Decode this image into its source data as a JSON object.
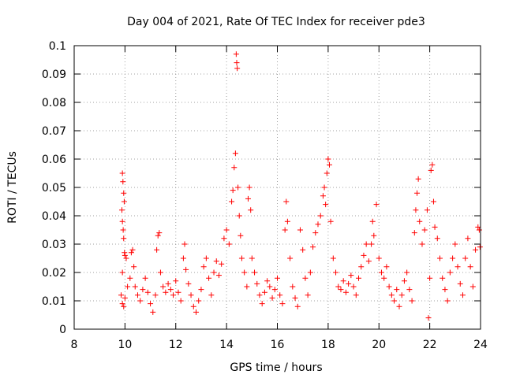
{
  "chart_data": {
    "type": "scatter",
    "title": "Day 004 of 2021, Rate Of TEC Index for receiver pde3",
    "xlabel": "GPS time / hours",
    "ylabel": "ROTI / TECUs",
    "xlim": [
      8,
      24
    ],
    "ylim": [
      0,
      0.1
    ],
    "xticks": [
      8,
      10,
      12,
      14,
      16,
      18,
      20,
      22,
      24
    ],
    "xtick_labels": [
      "8",
      "10",
      "12",
      "14",
      "16",
      "18",
      "20",
      "22",
      "24"
    ],
    "yticks": [
      0,
      0.01,
      0.02,
      0.03,
      0.04,
      0.05,
      0.06,
      0.07,
      0.08,
      0.09,
      0.1
    ],
    "ytick_labels": [
      "0",
      "0.01",
      "0.02",
      "0.03",
      "0.04",
      "0.05",
      "0.06",
      "0.07",
      "0.08",
      "0.09",
      "0.1"
    ],
    "grid": true,
    "marker": "+",
    "color": "#ff0000",
    "series": [
      {
        "name": "pde3",
        "points": [
          [
            9.9,
            0.055
          ],
          [
            9.92,
            0.052
          ],
          [
            9.95,
            0.048
          ],
          [
            9.97,
            0.045
          ],
          [
            9.88,
            0.042
          ],
          [
            9.9,
            0.038
          ],
          [
            9.93,
            0.035
          ],
          [
            9.95,
            0.032
          ],
          [
            9.98,
            0.027
          ],
          [
            10.0,
            0.026
          ],
          [
            10.05,
            0.025
          ],
          [
            9.9,
            0.02
          ],
          [
            9.85,
            0.012
          ],
          [
            9.9,
            0.009
          ],
          [
            9.95,
            0.008
          ],
          [
            10.0,
            0.011
          ],
          [
            10.1,
            0.015
          ],
          [
            10.2,
            0.018
          ],
          [
            10.25,
            0.027
          ],
          [
            10.3,
            0.028
          ],
          [
            10.35,
            0.022
          ],
          [
            10.4,
            0.015
          ],
          [
            10.5,
            0.012
          ],
          [
            10.6,
            0.01
          ],
          [
            10.7,
            0.014
          ],
          [
            10.8,
            0.018
          ],
          [
            10.9,
            0.013
          ],
          [
            11.0,
            0.009
          ],
          [
            11.1,
            0.006
          ],
          [
            11.2,
            0.012
          ],
          [
            11.25,
            0.028
          ],
          [
            11.3,
            0.033
          ],
          [
            11.35,
            0.034
          ],
          [
            11.4,
            0.02
          ],
          [
            11.5,
            0.015
          ],
          [
            11.6,
            0.013
          ],
          [
            11.7,
            0.016
          ],
          [
            11.8,
            0.014
          ],
          [
            11.9,
            0.012
          ],
          [
            12.0,
            0.017
          ],
          [
            12.1,
            0.013
          ],
          [
            12.2,
            0.01
          ],
          [
            12.3,
            0.025
          ],
          [
            12.35,
            0.03
          ],
          [
            12.4,
            0.021
          ],
          [
            12.5,
            0.016
          ],
          [
            12.6,
            0.012
          ],
          [
            12.7,
            0.008
          ],
          [
            12.8,
            0.006
          ],
          [
            12.9,
            0.01
          ],
          [
            13.0,
            0.014
          ],
          [
            13.1,
            0.022
          ],
          [
            13.2,
            0.025
          ],
          [
            13.3,
            0.018
          ],
          [
            13.4,
            0.012
          ],
          [
            13.5,
            0.02
          ],
          [
            13.6,
            0.024
          ],
          [
            13.7,
            0.019
          ],
          [
            13.8,
            0.023
          ],
          [
            13.9,
            0.032
          ],
          [
            14.0,
            0.035
          ],
          [
            14.1,
            0.03
          ],
          [
            14.2,
            0.045
          ],
          [
            14.25,
            0.049
          ],
          [
            14.3,
            0.057
          ],
          [
            14.35,
            0.062
          ],
          [
            14.38,
            0.097
          ],
          [
            14.4,
            0.094
          ],
          [
            14.42,
            0.092
          ],
          [
            14.45,
            0.05
          ],
          [
            14.5,
            0.04
          ],
          [
            14.55,
            0.033
          ],
          [
            14.6,
            0.025
          ],
          [
            14.7,
            0.02
          ],
          [
            14.8,
            0.015
          ],
          [
            14.85,
            0.046
          ],
          [
            14.9,
            0.05
          ],
          [
            14.95,
            0.042
          ],
          [
            15.0,
            0.025
          ],
          [
            15.1,
            0.02
          ],
          [
            15.2,
            0.016
          ],
          [
            15.3,
            0.012
          ],
          [
            15.4,
            0.009
          ],
          [
            15.5,
            0.013
          ],
          [
            15.6,
            0.017
          ],
          [
            15.7,
            0.015
          ],
          [
            15.8,
            0.011
          ],
          [
            15.9,
            0.014
          ],
          [
            16.0,
            0.018
          ],
          [
            16.1,
            0.012
          ],
          [
            16.2,
            0.009
          ],
          [
            16.3,
            0.035
          ],
          [
            16.35,
            0.045
          ],
          [
            16.4,
            0.038
          ],
          [
            16.5,
            0.025
          ],
          [
            16.6,
            0.015
          ],
          [
            16.7,
            0.011
          ],
          [
            16.8,
            0.008
          ],
          [
            16.9,
            0.035
          ],
          [
            17.0,
            0.028
          ],
          [
            17.1,
            0.018
          ],
          [
            17.2,
            0.012
          ],
          [
            17.3,
            0.02
          ],
          [
            17.4,
            0.029
          ],
          [
            17.5,
            0.034
          ],
          [
            17.6,
            0.037
          ],
          [
            17.7,
            0.04
          ],
          [
            17.8,
            0.047
          ],
          [
            17.85,
            0.05
          ],
          [
            17.9,
            0.044
          ],
          [
            17.95,
            0.055
          ],
          [
            18.0,
            0.06
          ],
          [
            18.05,
            0.058
          ],
          [
            18.1,
            0.038
          ],
          [
            18.2,
            0.025
          ],
          [
            18.3,
            0.02
          ],
          [
            18.4,
            0.015
          ],
          [
            18.5,
            0.014
          ],
          [
            18.6,
            0.017
          ],
          [
            18.7,
            0.013
          ],
          [
            18.8,
            0.016
          ],
          [
            18.9,
            0.019
          ],
          [
            19.0,
            0.015
          ],
          [
            19.1,
            0.012
          ],
          [
            19.2,
            0.018
          ],
          [
            19.3,
            0.022
          ],
          [
            19.4,
            0.026
          ],
          [
            19.5,
            0.03
          ],
          [
            19.6,
            0.024
          ],
          [
            19.7,
            0.03
          ],
          [
            19.75,
            0.038
          ],
          [
            19.8,
            0.033
          ],
          [
            19.9,
            0.044
          ],
          [
            20.0,
            0.025
          ],
          [
            20.1,
            0.02
          ],
          [
            20.2,
            0.018
          ],
          [
            20.3,
            0.022
          ],
          [
            20.4,
            0.015
          ],
          [
            20.5,
            0.012
          ],
          [
            20.6,
            0.01
          ],
          [
            20.7,
            0.014
          ],
          [
            20.8,
            0.008
          ],
          [
            20.9,
            0.012
          ],
          [
            21.0,
            0.017
          ],
          [
            21.1,
            0.02
          ],
          [
            21.2,
            0.014
          ],
          [
            21.3,
            0.01
          ],
          [
            21.4,
            0.034
          ],
          [
            21.45,
            0.042
          ],
          [
            21.5,
            0.048
          ],
          [
            21.55,
            0.053
          ],
          [
            21.6,
            0.038
          ],
          [
            21.7,
            0.03
          ],
          [
            21.8,
            0.035
          ],
          [
            21.9,
            0.042
          ],
          [
            21.95,
            0.004
          ],
          [
            22.0,
            0.018
          ],
          [
            22.05,
            0.056
          ],
          [
            22.1,
            0.058
          ],
          [
            22.15,
            0.045
          ],
          [
            22.2,
            0.036
          ],
          [
            22.3,
            0.032
          ],
          [
            22.4,
            0.025
          ],
          [
            22.5,
            0.018
          ],
          [
            22.6,
            0.014
          ],
          [
            22.7,
            0.01
          ],
          [
            22.8,
            0.02
          ],
          [
            22.9,
            0.025
          ],
          [
            23.0,
            0.03
          ],
          [
            23.1,
            0.022
          ],
          [
            23.2,
            0.016
          ],
          [
            23.3,
            0.012
          ],
          [
            23.4,
            0.025
          ],
          [
            23.5,
            0.032
          ],
          [
            23.6,
            0.022
          ],
          [
            23.7,
            0.015
          ],
          [
            23.8,
            0.028
          ],
          [
            23.9,
            0.036
          ],
          [
            23.95,
            0.035
          ],
          [
            23.98,
            0.029
          ]
        ]
      }
    ]
  }
}
